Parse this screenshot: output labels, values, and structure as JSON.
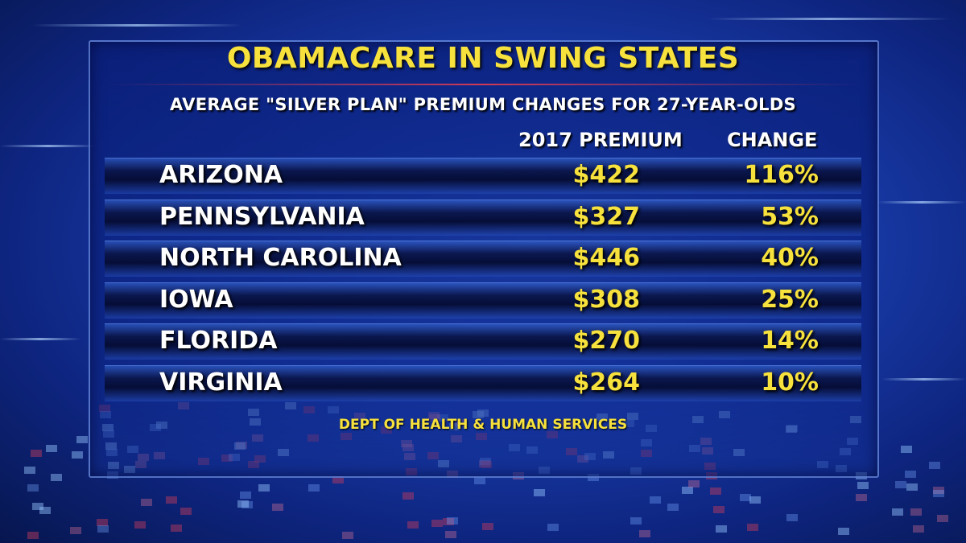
{
  "chart_data": {
    "type": "table",
    "title": "OBAMACARE IN SWING STATES",
    "subtitle": "AVERAGE \"SILVER PLAN\" PREMIUM CHANGES FOR 27-YEAR-OLDS",
    "columns": [
      "",
      "2017 PREMIUM",
      "CHANGE"
    ],
    "rows": [
      {
        "state": "ARIZONA",
        "premium": "$422",
        "change": "116%"
      },
      {
        "state": "PENNSYLVANIA",
        "premium": "$327",
        "change": "53%"
      },
      {
        "state": "NORTH CAROLINA",
        "premium": "$446",
        "change": "40%"
      },
      {
        "state": "IOWA",
        "premium": "$308",
        "change": "25%"
      },
      {
        "state": "FLORIDA",
        "premium": "$270",
        "change": "14%"
      },
      {
        "state": "VIRGINIA",
        "premium": "$264",
        "change": "10%"
      }
    ],
    "source": "DEPT OF HEALTH & HUMAN SERVICES"
  },
  "colors": {
    "accent_yellow": "#f7e13c",
    "text_white": "#ffffff",
    "background_blue": "#1a3fb0"
  }
}
